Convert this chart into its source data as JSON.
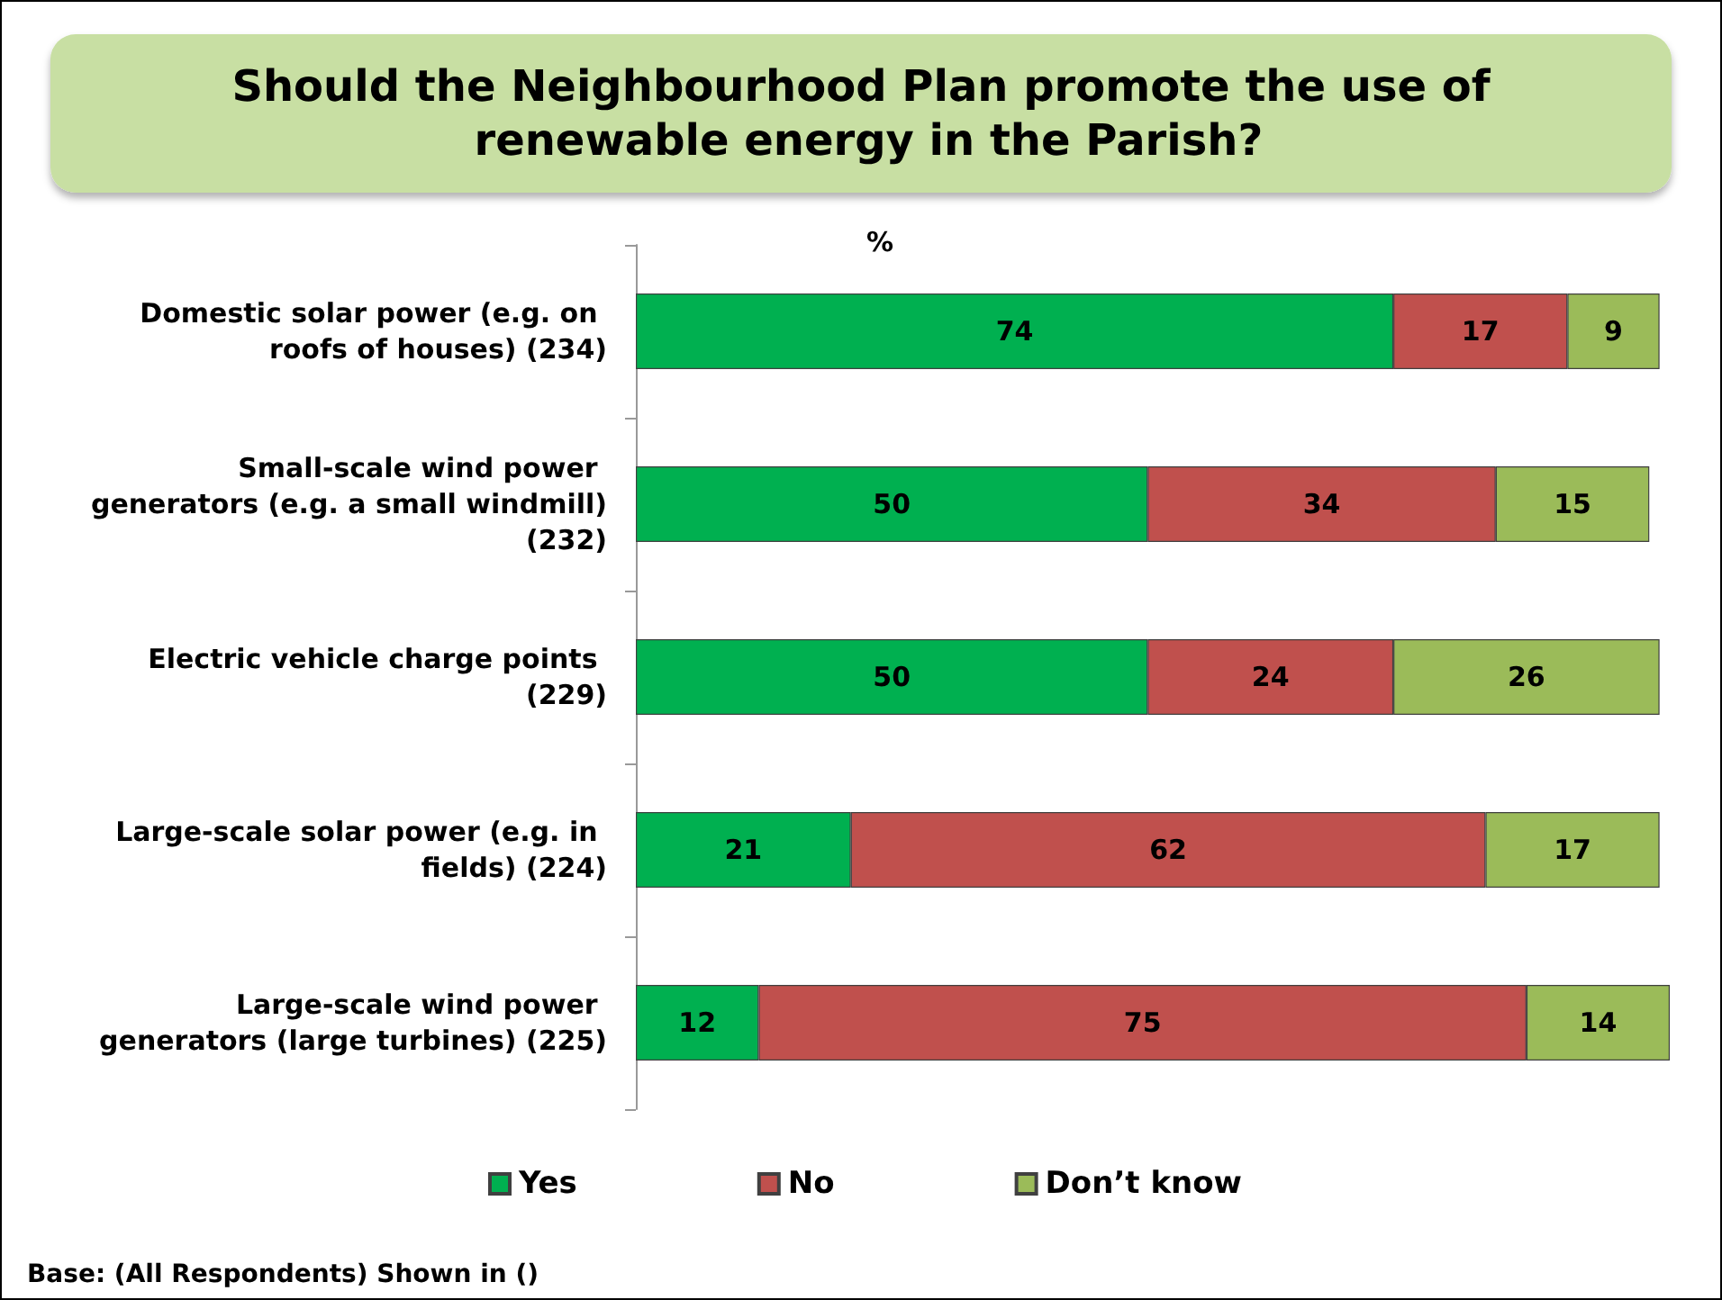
{
  "chart_data": {
    "type": "bar",
    "orientation": "horizontal",
    "stacked": true,
    "title": "Should the Neighbourhood Plan promote the use of renewable energy in the Parish?",
    "xlabel": "%",
    "categories": [
      "Domestic solar power (e.g. on roofs of houses) (234)",
      "Small-scale wind power generators (e.g. a small windmill) (232)",
      "Electric vehicle charge points (229)",
      "Large-scale solar power (e.g. in fields) (224)",
      "Large-scale wind power generators (large turbines) (225)"
    ],
    "series": [
      {
        "name": "Yes",
        "color": "#00b050",
        "values": [
          74,
          50,
          50,
          21,
          12
        ]
      },
      {
        "name": "No",
        "color": "#c0504d",
        "values": [
          17,
          34,
          24,
          62,
          75
        ]
      },
      {
        "name": "Don’t know",
        "color": "#9bbb59",
        "values": [
          9,
          15,
          26,
          17,
          14
        ]
      }
    ],
    "data_labels": true,
    "legend": "bottom",
    "tick_labels": "y",
    "annotations": [
      "Base: (All Respondents) Shown in ()"
    ]
  }
}
